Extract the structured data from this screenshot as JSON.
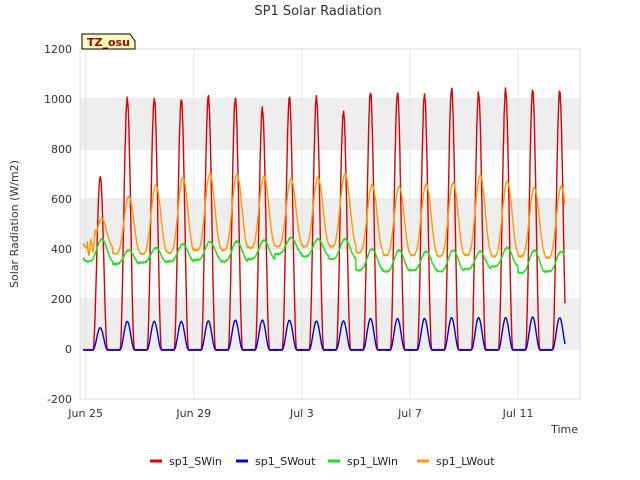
{
  "chart_data": {
    "type": "line",
    "title": "SP1 Solar Radiation",
    "xlabel": "Time",
    "ylabel": "Solar Radiation (W/m2)",
    "badge": "TZ_osu",
    "ylim": [
      -200,
      1200
    ],
    "yticks": [
      -200,
      0,
      200,
      400,
      600,
      800,
      1000,
      1200
    ],
    "x_range": [
      "2024-06-24 19:00",
      "2024-07-13 07:00"
    ],
    "xticks": [
      "Jun 25",
      "Jun 29",
      "Jul 3",
      "Jul 7",
      "Jul 11"
    ],
    "xtick_days": [
      0,
      4,
      8,
      12,
      16
    ],
    "grid": true,
    "legend_position": "bottom",
    "colors": {
      "sp1_SWin": "#dd0000",
      "sp1_SWout": "#0000dd",
      "sp1_LWin": "#22dd22",
      "sp1_LWout": "#ff9900",
      "band": "#eeeeee",
      "badge_fill": "#ffffc0"
    },
    "days": [
      "Jun 25",
      "Jun 26",
      "Jun 27",
      "Jun 28",
      "Jun 29",
      "Jun 30",
      "Jul 1",
      "Jul 2",
      "Jul 3",
      "Jul 4",
      "Jul 5",
      "Jul 6",
      "Jul 7",
      "Jul 8",
      "Jul 9",
      "Jul 10",
      "Jul 11",
      "Jul 12"
    ],
    "series": [
      {
        "name": "sp1_SWin",
        "kind": "daily_peak",
        "night": -5,
        "values": [
          690,
          1000,
          1005,
          1000,
          1008,
          1000,
          960,
          1000,
          1005,
          950,
          1030,
          1025,
          1015,
          1040,
          1025,
          1035,
          1035,
          1030
        ]
      },
      {
        "name": "sp1_SWout",
        "kind": "daily_peak",
        "night": -3,
        "values": [
          85,
          110,
          110,
          110,
          112,
          115,
          115,
          115,
          112,
          112,
          122,
          122,
          122,
          125,
          125,
          125,
          128,
          125
        ]
      },
      {
        "name": "sp1_LWin",
        "kind": "daily_wave",
        "min": [
          350,
          340,
          345,
          350,
          355,
          350,
          360,
          380,
          370,
          360,
          315,
          310,
          315,
          310,
          320,
          330,
          305,
          310
        ],
        "max": [
          440,
          395,
          405,
          420,
          430,
          430,
          435,
          445,
          440,
          440,
          400,
          395,
          390,
          395,
          390,
          405,
          395,
          390
        ]
      },
      {
        "name": "sp1_LWout",
        "kind": "daily_wave",
        "min": [
          405,
          380,
          380,
          385,
          395,
          395,
          405,
          410,
          410,
          410,
          385,
          375,
          375,
          370,
          375,
          370,
          370,
          365
        ],
        "max": [
          520,
          610,
          655,
          685,
          700,
          700,
          690,
          680,
          685,
          700,
          655,
          650,
          660,
          665,
          695,
          670,
          645,
          650
        ]
      }
    ]
  }
}
